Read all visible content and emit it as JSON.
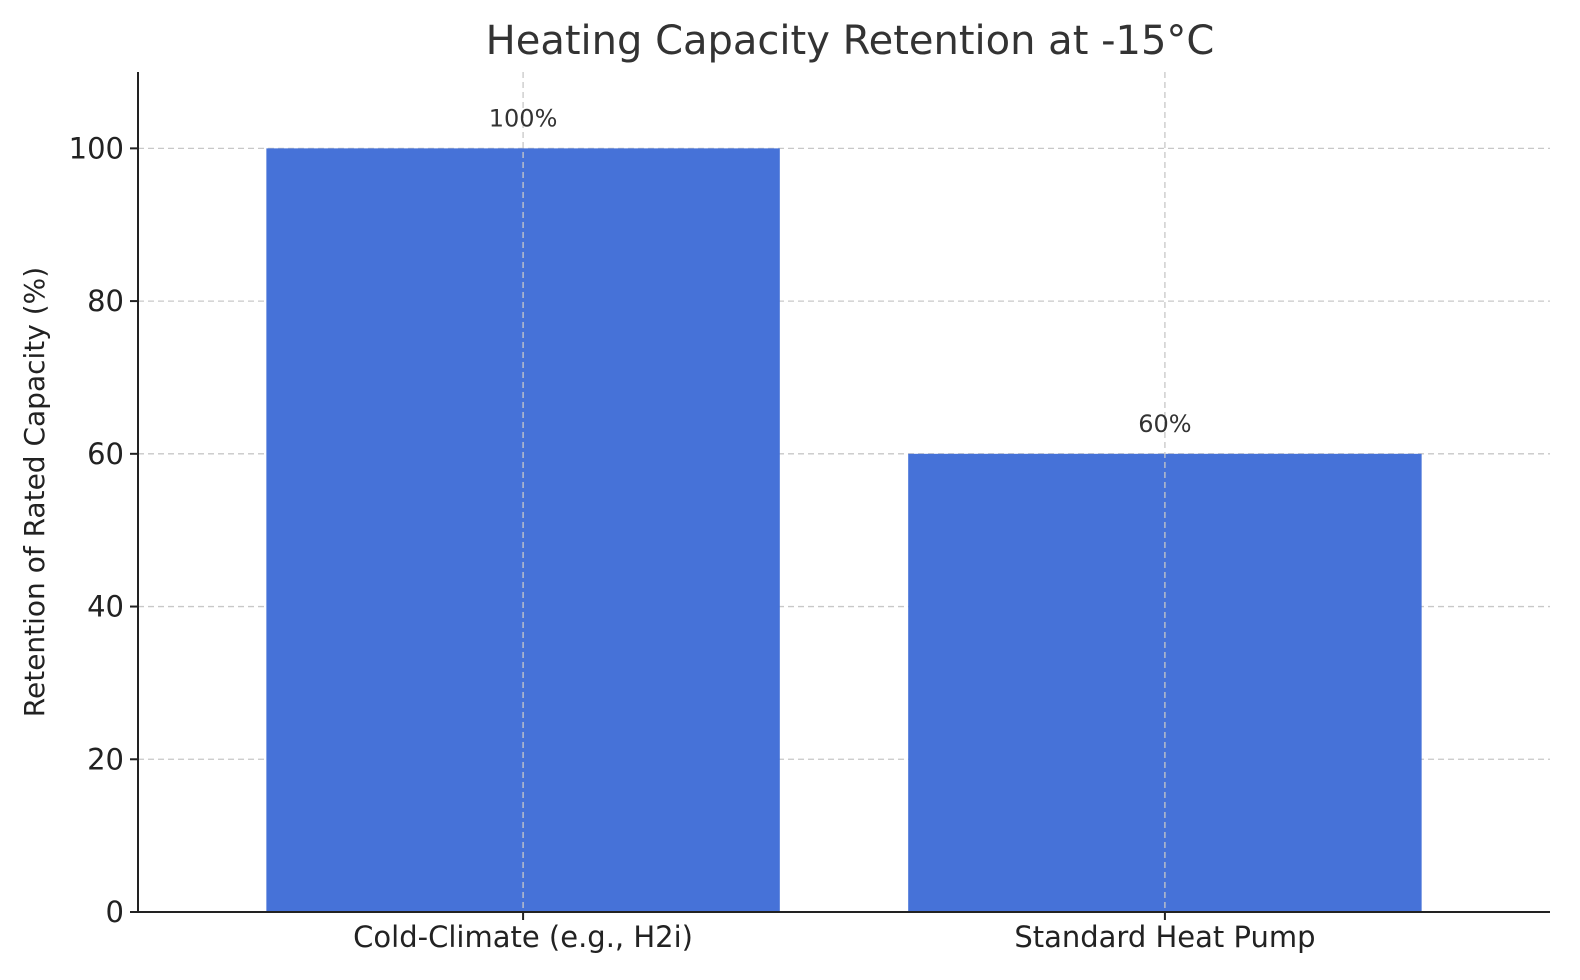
{
  "chart_data": {
    "type": "bar",
    "title": "Heating Capacity Retention at -15°C",
    "xlabel": "",
    "ylabel": "Retention of Rated Capacity (%)",
    "categories": [
      "Cold-Climate (e.g., H2i)",
      "Standard Heat Pump"
    ],
    "values": [
      100,
      60
    ],
    "data_labels": [
      "100%",
      "60%"
    ],
    "ylim": [
      0,
      110
    ],
    "yticks": [
      0,
      20,
      40,
      60,
      80,
      100
    ],
    "bar_color": "#4672d8",
    "grid": true,
    "legend": "none"
  }
}
